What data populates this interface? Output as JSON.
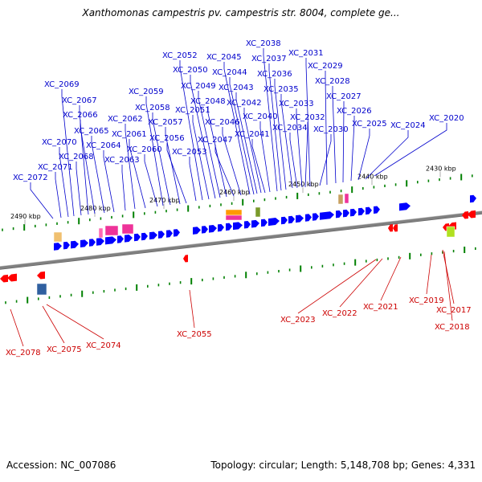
{
  "title": "Xanthomonas campestris pv. campestris str. 8004, complete ge...",
  "footer": {
    "accession": "Accession: NC_007086",
    "summary": "Topology: circular; Length: 5,148,708 bp; Genes: 4,331"
  },
  "scale_labels": [
    "2490 kbp",
    "2480 kbp",
    "2470 kbp",
    "2460 kbp",
    "2450 kbp",
    "2440 kbp",
    "2430 kbp"
  ],
  "colors": {
    "forward_gene": "#0000ff",
    "reverse_gene": "#ff0000",
    "backbone": "#808080",
    "tick": "#008000",
    "label_forward": "#0000cc",
    "label_reverse": "#cc0000"
  },
  "forward_genes": [
    "XC_2020",
    "XC_2024",
    "XC_2025",
    "XC_2026",
    "XC_2027",
    "XC_2028",
    "XC_2029",
    "XC_2030",
    "XC_2031",
    "XC_2032",
    "XC_2033",
    "XC_2034",
    "XC_2035",
    "XC_2036",
    "XC_2037",
    "XC_2038",
    "XC_2040",
    "XC_2041",
    "XC_2042",
    "XC_2043",
    "XC_2044",
    "XC_2045",
    "XC_2046",
    "XC_2047",
    "XC_2048",
    "XC_2049",
    "XC_2050",
    "XC_2051",
    "XC_2052",
    "XC_2053",
    "XC_2056",
    "XC_2057",
    "XC_2058",
    "XC_2059",
    "XC_2060",
    "XC_2061",
    "XC_2062",
    "XC_2063",
    "XC_2064",
    "XC_2065",
    "XC_2066",
    "XC_2067",
    "XC_2068",
    "XC_2069",
    "XC_2070",
    "XC_2071",
    "XC_2072"
  ],
  "reverse_genes": [
    "XC_2017",
    "XC_2018",
    "XC_2019",
    "XC_2021",
    "XC_2022",
    "XC_2023",
    "XC_2055",
    "XC_2074",
    "XC_2075",
    "XC_2078"
  ]
}
